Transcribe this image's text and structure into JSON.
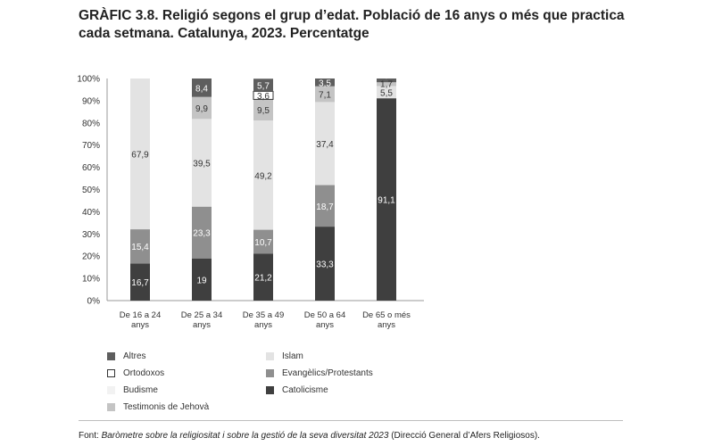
{
  "title": "GRÀFIC 3.8. Religió segons el grup d’edat. Població de 16 anys o més que practica cada setmana. Catalunya, 2023. Percentatge",
  "source": {
    "prefix": "Font: ",
    "italic": "Baròmetre sobre la religiositat i sobre la gestió de la seva diversitat 2023",
    "suffix": " (Direcció General d’Afers Religiosos)."
  },
  "chart_data": {
    "type": "bar",
    "stacked": true,
    "categories": [
      "De 16 a 24 anys",
      "De 25 a 34 anys",
      "De 35 a 49 anys",
      "De 50 a 64 anys",
      "De 65 o més anys"
    ],
    "ylim": [
      0,
      100
    ],
    "yticks": [
      "0%",
      "10%",
      "20%",
      "30%",
      "40%",
      "50%",
      "60%",
      "70%",
      "80%",
      "90%",
      "100%"
    ],
    "grid": false,
    "legend_position": "bottom",
    "series": [
      {
        "name": "Catolicisme",
        "color": "#3f3f3f",
        "label_color": "#ffffff",
        "values": [
          16.7,
          19,
          21.2,
          33.3,
          91.1
        ]
      },
      {
        "name": "Evangèlics/Protestants",
        "color": "#8f8f8f",
        "label_color": "#ffffff",
        "values": [
          15.4,
          23.3,
          10.7,
          18.7,
          0
        ]
      },
      {
        "name": "Islam",
        "color": "#e3e3e3",
        "label_color": "#333333",
        "values": [
          67.9,
          39.5,
          49.2,
          37.4,
          5.5
        ]
      },
      {
        "name": "Testimonis de Jehovà",
        "color": "#c4c4c4",
        "label_color": "#333333",
        "values": [
          0,
          9.9,
          9.5,
          7.1,
          1.7
        ]
      },
      {
        "name": "Ortodoxos",
        "color": "#ffffff",
        "label_color": "#333333",
        "values": [
          0,
          0,
          3.6,
          0,
          0
        ]
      },
      {
        "name": "Altres",
        "color": "#5e5e5e",
        "label_color": "#ffffff",
        "values": [
          0,
          8.4,
          5.7,
          3.5,
          1.7
        ]
      },
      {
        "name": "Budisme",
        "color": "#f2f2f2",
        "label_color": "#333333",
        "values": [
          0,
          0,
          0,
          0,
          0
        ]
      }
    ],
    "legend": [
      {
        "name": "Altres",
        "color": "#5e5e5e",
        "border": "#5e5e5e"
      },
      {
        "name": "Islam",
        "color": "#e3e3e3",
        "border": "#e3e3e3"
      },
      {
        "name": "Ortodoxos",
        "color": "#ffffff",
        "border": "#333333"
      },
      {
        "name": "Evangèlics/Protestants",
        "color": "#8f8f8f",
        "border": "#8f8f8f"
      },
      {
        "name": "Budisme",
        "color": "#f2f2f2",
        "border": "#f2f2f2"
      },
      {
        "name": "Catolicisme",
        "color": "#3f3f3f",
        "border": "#3f3f3f"
      },
      {
        "name": "Testimonis de Jehovà",
        "color": "#c4c4c4",
        "border": "#c4c4c4"
      }
    ]
  }
}
